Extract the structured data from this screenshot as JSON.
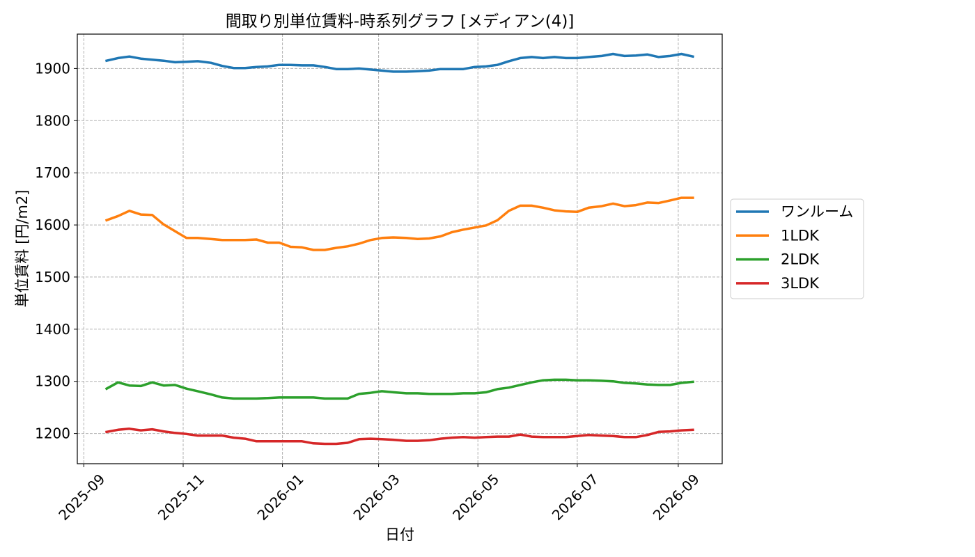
{
  "chart_data": {
    "type": "line",
    "title": "間取り別単位賃料-時系列グラフ [メディアン(4)]",
    "xlabel": "日付",
    "ylabel": "単位賃料 [円/m2]",
    "x": [
      "2025-09-15",
      "2025-09-22",
      "2025-09-29",
      "2025-10-06",
      "2025-10-13",
      "2025-10-20",
      "2025-10-27",
      "2025-11-03",
      "2025-11-10",
      "2025-11-18",
      "2025-11-25",
      "2025-12-02",
      "2025-12-09",
      "2025-12-16",
      "2025-12-23",
      "2025-12-30",
      "2026-01-06",
      "2026-01-13",
      "2026-01-20",
      "2026-01-27",
      "2026-02-03",
      "2026-02-10",
      "2026-02-17",
      "2026-02-24",
      "2026-03-03",
      "2026-03-10",
      "2026-03-18",
      "2026-03-25",
      "2026-04-01",
      "2026-04-08",
      "2026-04-15",
      "2026-04-22",
      "2026-04-29",
      "2026-05-06",
      "2026-05-13",
      "2026-05-20",
      "2026-05-27",
      "2026-06-03",
      "2026-06-10",
      "2026-06-17",
      "2026-06-24",
      "2026-07-01",
      "2026-07-08",
      "2026-07-16",
      "2026-07-23",
      "2026-07-30",
      "2026-08-06",
      "2026-08-13",
      "2026-08-20",
      "2026-08-27",
      "2026-09-03",
      "2026-09-10"
    ],
    "xlim": [
      "2025-08-28",
      "2026-09-28"
    ],
    "ylim": [
      1142,
      1966
    ],
    "xticks": [
      "2025-09",
      "2025-11",
      "2026-01",
      "2026-03",
      "2026-05",
      "2026-07",
      "2026-09"
    ],
    "yticks": [
      1200,
      1300,
      1400,
      1500,
      1600,
      1700,
      1800,
      1900
    ],
    "grid": true,
    "legend_position": "center right, outside the axes",
    "series": [
      {
        "name": "ワンルーム",
        "color": "#1f77b4",
        "values": [
          1915,
          1920,
          1923,
          1919,
          1917,
          1915,
          1912,
          1913,
          1914,
          1911,
          1905,
          1901,
          1901,
          1903,
          1904,
          1907,
          1907,
          1906,
          1906,
          1903,
          1899,
          1899,
          1900,
          1898,
          1896,
          1894,
          1894,
          1895,
          1896,
          1899,
          1899,
          1899,
          1903,
          1904,
          1907,
          1914,
          1920,
          1922,
          1920,
          1922,
          1920,
          1920,
          1922,
          1924,
          1928,
          1924,
          1925,
          1927,
          1922,
          1924,
          1928,
          1923
        ]
      },
      {
        "name": "1LDK",
        "color": "#ff7f0e",
        "values": [
          1609,
          1617,
          1627,
          1620,
          1619,
          1601,
          1588,
          1575,
          1575,
          1573,
          1571,
          1571,
          1571,
          1572,
          1566,
          1566,
          1558,
          1557,
          1552,
          1552,
          1556,
          1559,
          1564,
          1571,
          1575,
          1576,
          1575,
          1573,
          1574,
          1578,
          1586,
          1591,
          1595,
          1599,
          1609,
          1627,
          1637,
          1637,
          1633,
          1628,
          1626,
          1625,
          1633,
          1636,
          1641,
          1636,
          1638,
          1643,
          1642,
          1647,
          1652,
          1652
        ]
      },
      {
        "name": "2LDK",
        "color": "#2ca02c",
        "values": [
          1286,
          1298,
          1292,
          1291,
          1298,
          1292,
          1293,
          1286,
          1281,
          1275,
          1269,
          1267,
          1267,
          1267,
          1268,
          1269,
          1269,
          1269,
          1269,
          1267,
          1267,
          1267,
          1276,
          1278,
          1281,
          1279,
          1277,
          1277,
          1276,
          1276,
          1276,
          1277,
          1277,
          1279,
          1285,
          1288,
          1293,
          1298,
          1302,
          1303,
          1303,
          1302,
          1302,
          1301,
          1300,
          1297,
          1296,
          1294,
          1293,
          1293,
          1297,
          1299
        ]
      },
      {
        "name": "3LDK",
        "color": "#d62728",
        "values": [
          1203,
          1207,
          1209,
          1206,
          1208,
          1204,
          1201,
          1199,
          1196,
          1196,
          1196,
          1192,
          1190,
          1185,
          1185,
          1185,
          1185,
          1185,
          1181,
          1180,
          1180,
          1182,
          1189,
          1190,
          1189,
          1188,
          1186,
          1186,
          1187,
          1190,
          1192,
          1193,
          1192,
          1193,
          1194,
          1194,
          1198,
          1194,
          1193,
          1193,
          1193,
          1195,
          1197,
          1196,
          1195,
          1193,
          1193,
          1197,
          1203,
          1204,
          1206,
          1207
        ]
      }
    ]
  }
}
